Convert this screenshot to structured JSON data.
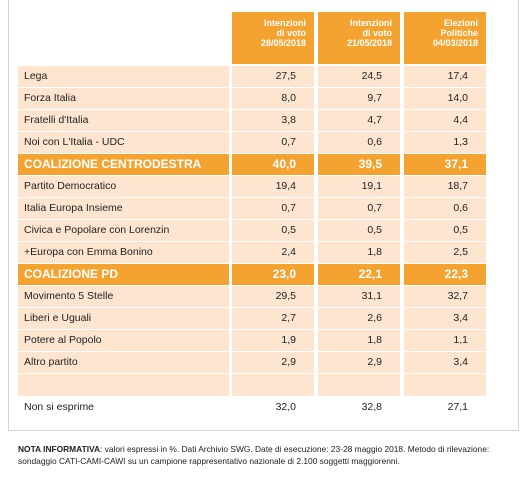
{
  "chart_data": {
    "type": "table",
    "columns": [
      [
        "Intenzioni",
        "di voto",
        "28/05/2018"
      ],
      [
        "Intenzioni",
        "di voto",
        "21/05/2018"
      ],
      [
        "Elezioni",
        "Politiche",
        "04/03/2018"
      ]
    ],
    "rows": [
      {
        "label": "Lega",
        "values": [
          "27,5",
          "24,5",
          "17,4"
        ],
        "style": "light"
      },
      {
        "label": "Forza Italia",
        "values": [
          "8,0",
          "9,7",
          "14,0"
        ],
        "style": "light"
      },
      {
        "label": "Fratelli d'Italia",
        "values": [
          "3,8",
          "4,7",
          "4,4"
        ],
        "style": "light"
      },
      {
        "label": "Noi con L'Italia - UDC",
        "values": [
          "0,7",
          "0,6",
          "1,3"
        ],
        "style": "light"
      },
      {
        "label": "COALIZIONE CENTRODESTRA",
        "values": [
          "40,0",
          "39,5",
          "37,1"
        ],
        "style": "coal"
      },
      {
        "label": "Partito Democratico",
        "values": [
          "19,4",
          "19,1",
          "18,7"
        ],
        "style": "light"
      },
      {
        "label": "Italia Europa Insieme",
        "values": [
          "0,7",
          "0,7",
          "0,6"
        ],
        "style": "light"
      },
      {
        "label": "Civica e Popolare con Lorenzin",
        "values": [
          "0,5",
          "0,5",
          "0,5"
        ],
        "style": "light"
      },
      {
        "label": "+Europa con Emma Bonino",
        "values": [
          "2,4",
          "1,8",
          "2,5"
        ],
        "style": "light"
      },
      {
        "label": "COALIZIONE PD",
        "values": [
          "23,0",
          "22,1",
          "22,3"
        ],
        "style": "coal"
      },
      {
        "label": "Movimento 5 Stelle",
        "values": [
          "29,5",
          "31,1",
          "32,7"
        ],
        "style": "light"
      },
      {
        "label": "Liberi e Uguali",
        "values": [
          "2,7",
          "2,6",
          "3,4"
        ],
        "style": "light"
      },
      {
        "label": "Potere al Popolo",
        "values": [
          "1,9",
          "1,8",
          "1,1"
        ],
        "style": "light"
      },
      {
        "label": "Altro partito",
        "values": [
          "2,9",
          "2,9",
          "3,4"
        ],
        "style": "light"
      },
      {
        "label": "",
        "values": [
          "",
          "",
          ""
        ],
        "style": "gap"
      },
      {
        "label": "Non si esprime",
        "values": [
          "32,0",
          "32,8",
          "27,1"
        ],
        "style": "white"
      }
    ]
  },
  "note": {
    "bold": "NOTA INFORMATIVA",
    "text": ": valori espressi in %. Dati Archivio SWG. Date di esecuzione: 23-28 maggio 2018. Metodo di rilevazione: sondaggio CATI-CAMI-CAWI su un campione rappresentativo nazionale di 2.100 soggetti maggiorenni."
  },
  "colors": {
    "accent": "#f5a330",
    "row_fill": "#fde5d0"
  }
}
